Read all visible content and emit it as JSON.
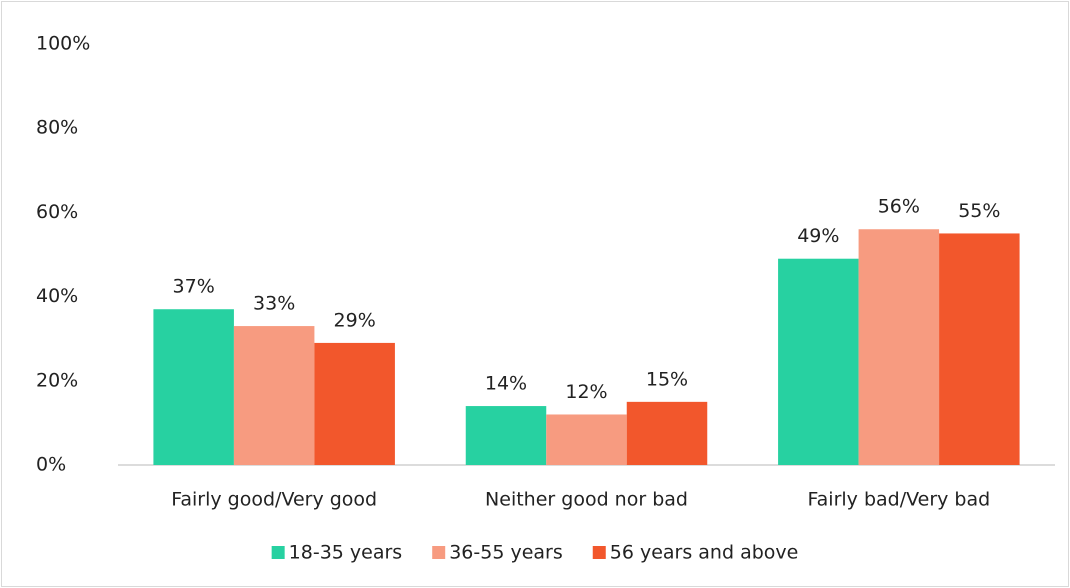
{
  "chart_data": {
    "type": "bar",
    "categories": [
      "Fairly good/Very good",
      "Neither good nor bad",
      "Fairly bad/Very bad"
    ],
    "series": [
      {
        "name": "18-35 years",
        "color": "#27d1a1",
        "values": [
          37,
          14,
          49
        ],
        "value_labels": [
          "37%",
          "14%",
          "49%"
        ]
      },
      {
        "name": "36-55 years",
        "color": "#f79b80",
        "values": [
          33,
          12,
          56
        ],
        "value_labels": [
          "33%",
          "12%",
          "56%"
        ]
      },
      {
        "name": "56 years and above",
        "color": "#f2572c",
        "values": [
          29,
          15,
          55
        ],
        "value_labels": [
          "29%",
          "15%",
          "55%"
        ]
      }
    ],
    "ylim": [
      0,
      100
    ],
    "yticks": [
      {
        "value": 0,
        "label": "0%"
      },
      {
        "value": 20,
        "label": "20%"
      },
      {
        "value": 40,
        "label": "40%"
      },
      {
        "value": 60,
        "label": "60%"
      },
      {
        "value": 80,
        "label": "80%"
      },
      {
        "value": 100,
        "label": "100%"
      }
    ],
    "grid": false,
    "legend": "bottom"
  }
}
